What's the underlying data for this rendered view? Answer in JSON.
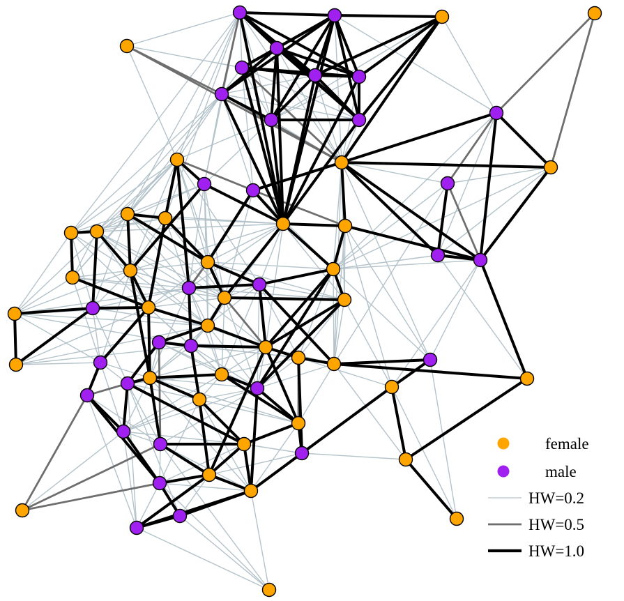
{
  "diagram": {
    "type": "network",
    "colors": {
      "female": "#FFA500",
      "male": "#A020F0",
      "node_stroke": "#000000",
      "hw_0_2": "#B4C3CA",
      "hw_0_5": "#6E6E6E",
      "hw_1_0": "#000000"
    },
    "legend": {
      "female": "female",
      "male": "male",
      "hw02": "HW=0.2",
      "hw05": "HW=0.5",
      "hw10": "HW=1.0"
    }
  }
}
